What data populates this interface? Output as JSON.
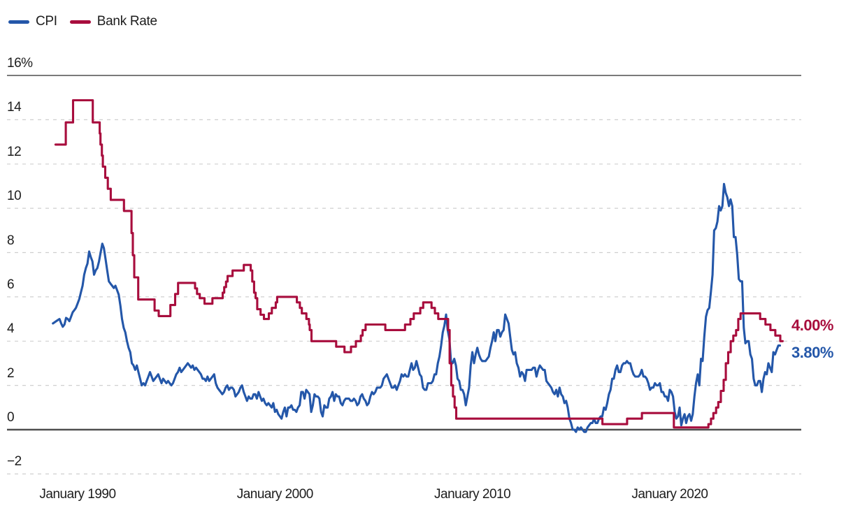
{
  "legend": {
    "items": [
      {
        "label": "CPI",
        "color": "#2457A9"
      },
      {
        "label": "Bank Rate",
        "color": "#A80D3D"
      }
    ]
  },
  "end_labels": [
    {
      "text": "4.00%",
      "series": "Bank Rate",
      "color": "#A80D3D",
      "y_value": 4.0
    },
    {
      "text": "3.80%",
      "series": "CPI",
      "color": "#2457A9",
      "y_value": 3.8
    }
  ],
  "chart_data": {
    "type": "line",
    "title": "",
    "xlabel": "",
    "ylabel": "",
    "x_range": [
      1988.75,
      2025.75
    ],
    "y_range": [
      -2,
      16
    ],
    "grid": "dashed horizontal every 2",
    "legend_position": "top-left",
    "x_ticks": [
      {
        "t": 1990,
        "label": "January 1990"
      },
      {
        "t": 2000,
        "label": "January 2000"
      },
      {
        "t": 2010,
        "label": "January 2010"
      },
      {
        "t": 2020,
        "label": "January 2020"
      }
    ],
    "y_ticks": [
      {
        "v": 16,
        "label": "16%",
        "line": "solid"
      },
      {
        "v": 14,
        "label": "14",
        "line": "dashed"
      },
      {
        "v": 12,
        "label": "12",
        "line": "dashed"
      },
      {
        "v": 10,
        "label": "10",
        "line": "dashed"
      },
      {
        "v": 8,
        "label": "8",
        "line": "dashed"
      },
      {
        "v": 6,
        "label": "6",
        "line": "dashed"
      },
      {
        "v": 4,
        "label": "4",
        "line": "dashed"
      },
      {
        "v": 2,
        "label": "2",
        "line": "dashed"
      },
      {
        "v": 0,
        "label": "0",
        "line": "axis"
      },
      {
        "v": -2,
        "label": "−2",
        "line": "dashed"
      }
    ],
    "series": [
      {
        "name": "CPI",
        "color": "#2457A9",
        "style": "line",
        "start_year": 1988.75,
        "step_years": 0.0833333,
        "values": [
          4.8,
          4.85,
          4.9,
          4.95,
          5.0,
          4.8,
          4.65,
          4.75,
          5.05,
          5.0,
          4.9,
          5.1,
          5.3,
          5.4,
          5.5,
          5.7,
          5.9,
          6.2,
          6.5,
          7.0,
          7.3,
          7.5,
          8.05,
          7.8,
          7.6,
          7.0,
          7.2,
          7.3,
          7.6,
          8.0,
          8.4,
          8.2,
          7.7,
          7.2,
          6.7,
          6.6,
          6.5,
          6.4,
          6.5,
          6.3,
          6.1,
          5.6,
          5.0,
          4.6,
          4.4,
          4.0,
          3.7,
          3.5,
          3.0,
          2.9,
          2.7,
          2.9,
          2.6,
          2.3,
          2.0,
          2.1,
          2.0,
          2.2,
          2.4,
          2.6,
          2.4,
          2.2,
          2.3,
          2.4,
          2.5,
          2.3,
          2.1,
          2.3,
          2.2,
          2.1,
          2.2,
          2.1,
          2.0,
          2.1,
          2.3,
          2.5,
          2.6,
          2.8,
          2.6,
          2.7,
          2.8,
          2.9,
          3.0,
          2.9,
          2.8,
          2.9,
          2.7,
          2.8,
          2.7,
          2.6,
          2.5,
          2.3,
          2.3,
          2.2,
          2.4,
          2.2,
          2.3,
          2.4,
          2.5,
          2.1,
          1.9,
          1.8,
          1.7,
          1.6,
          1.7,
          1.9,
          2.0,
          1.8,
          1.9,
          1.9,
          1.8,
          1.5,
          1.6,
          1.7,
          1.9,
          2.0,
          1.7,
          1.5,
          1.3,
          1.5,
          1.4,
          1.4,
          1.6,
          1.6,
          1.4,
          1.7,
          1.5,
          1.3,
          1.4,
          1.2,
          1.1,
          1.2,
          1.1,
          1.0,
          1.2,
          0.8,
          0.9,
          0.7,
          0.6,
          0.5,
          0.8,
          1.0,
          0.6,
          1.0,
          1.0,
          1.1,
          0.9,
          0.9,
          0.8,
          1.0,
          1.1,
          1.7,
          1.7,
          1.4,
          1.8,
          1.7,
          1.6,
          0.8,
          1.1,
          1.6,
          1.5,
          1.5,
          1.4,
          0.8,
          0.6,
          1.1,
          1.0,
          1.0,
          1.4,
          1.5,
          1.7,
          1.3,
          1.6,
          1.5,
          1.5,
          1.2,
          1.1,
          1.3,
          1.4,
          1.4,
          1.4,
          1.3,
          1.3,
          1.4,
          1.3,
          1.1,
          1.2,
          1.5,
          1.6,
          1.4,
          1.3,
          1.1,
          1.2,
          1.5,
          1.7,
          1.6,
          1.7,
          1.9,
          1.9,
          1.9,
          2.0,
          2.3,
          2.4,
          2.5,
          2.3,
          2.1,
          1.9,
          1.9,
          2.0,
          1.8,
          2.0,
          2.2,
          2.5,
          2.4,
          2.5,
          2.4,
          2.4,
          2.7,
          3.0,
          2.7,
          2.8,
          3.1,
          2.8,
          2.5,
          2.4,
          1.9,
          1.8,
          1.8,
          2.1,
          2.1,
          2.1,
          2.2,
          2.5,
          2.5,
          3.0,
          3.3,
          3.8,
          4.4,
          4.7,
          5.2,
          4.5,
          4.1,
          3.1,
          3.0,
          3.2,
          2.9,
          2.3,
          2.2,
          1.8,
          1.8,
          1.6,
          1.1,
          1.5,
          1.9,
          2.9,
          3.5,
          3.0,
          3.4,
          3.7,
          3.4,
          3.2,
          3.1,
          3.1,
          3.1,
          3.2,
          3.3,
          3.7,
          4.0,
          4.4,
          4.0,
          4.5,
          4.5,
          4.2,
          4.4,
          4.5,
          5.2,
          5.0,
          4.8,
          4.2,
          3.6,
          3.4,
          3.5,
          3.0,
          2.8,
          2.4,
          2.6,
          2.5,
          2.2,
          2.7,
          2.7,
          2.7,
          2.7,
          2.8,
          2.8,
          2.4,
          2.7,
          2.9,
          2.8,
          2.7,
          2.7,
          2.2,
          2.1,
          2.0,
          1.9,
          1.7,
          1.6,
          1.8,
          1.5,
          1.9,
          1.6,
          1.5,
          1.2,
          1.3,
          1.0,
          0.5,
          0.3,
          0.0,
          0.0,
          -0.1,
          0.1,
          0.0,
          0.1,
          0.0,
          -0.1,
          -0.1,
          0.1,
          0.2,
          0.3,
          0.3,
          0.5,
          0.3,
          0.3,
          0.5,
          0.6,
          0.6,
          1.0,
          0.9,
          1.2,
          1.6,
          1.8,
          2.3,
          2.3,
          2.7,
          2.9,
          2.6,
          2.6,
          2.9,
          3.0,
          3.0,
          3.1,
          3.0,
          3.0,
          2.7,
          2.5,
          2.4,
          2.4,
          2.4,
          2.5,
          2.7,
          2.4,
          2.4,
          2.3,
          2.1,
          1.8,
          1.9,
          1.9,
          2.1,
          2.0,
          2.0,
          2.1,
          1.7,
          1.7,
          1.5,
          1.5,
          1.3,
          1.8,
          1.7,
          1.5,
          0.8,
          0.5,
          0.6,
          1.0,
          0.2,
          0.5,
          0.7,
          0.3,
          0.6,
          0.7,
          0.4,
          0.7,
          1.5,
          2.1,
          2.5,
          2.0,
          3.2,
          3.1,
          4.2,
          5.1,
          5.4,
          5.5,
          6.2,
          7.0,
          9.0,
          9.1,
          9.4,
          10.1,
          9.9,
          10.1,
          11.1,
          10.7,
          10.5,
          10.1,
          10.4,
          10.1,
          8.7,
          8.7,
          7.9,
          6.8,
          6.7,
          6.7,
          4.6,
          3.9,
          4.0,
          4.0,
          3.4,
          3.2,
          2.3,
          2.0,
          2.0,
          2.2,
          2.2,
          1.7,
          2.3,
          2.6,
          2.5,
          3.0,
          2.8,
          2.6,
          3.5,
          3.4,
          3.6,
          3.8,
          3.8
        ]
      },
      {
        "name": "Bank Rate",
        "color": "#A80D3D",
        "style": "step",
        "points": [
          [
            1988.88,
            12.88
          ],
          [
            1989.4,
            13.88
          ],
          [
            1989.77,
            14.88
          ],
          [
            1990.77,
            13.88
          ],
          [
            1991.12,
            13.38
          ],
          [
            1991.16,
            12.88
          ],
          [
            1991.23,
            12.38
          ],
          [
            1991.28,
            11.88
          ],
          [
            1991.4,
            11.38
          ],
          [
            1991.53,
            10.88
          ],
          [
            1991.68,
            10.38
          ],
          [
            1992.35,
            9.88
          ],
          [
            1992.73,
            8.88
          ],
          [
            1992.8,
            7.88
          ],
          [
            1992.87,
            6.88
          ],
          [
            1993.07,
            5.88
          ],
          [
            1993.9,
            5.38
          ],
          [
            1994.11,
            5.13
          ],
          [
            1994.7,
            5.63
          ],
          [
            1994.94,
            6.13
          ],
          [
            1995.09,
            6.63
          ],
          [
            1995.95,
            6.38
          ],
          [
            1996.05,
            6.13
          ],
          [
            1996.19,
            5.94
          ],
          [
            1996.43,
            5.69
          ],
          [
            1996.83,
            5.94
          ],
          [
            1997.35,
            6.19
          ],
          [
            1997.43,
            6.44
          ],
          [
            1997.52,
            6.69
          ],
          [
            1997.6,
            6.94
          ],
          [
            1997.85,
            7.19
          ],
          [
            1998.42,
            7.44
          ],
          [
            1998.77,
            7.19
          ],
          [
            1998.85,
            6.69
          ],
          [
            1998.94,
            6.19
          ],
          [
            1999.02,
            5.94
          ],
          [
            1999.1,
            5.44
          ],
          [
            1999.27,
            5.19
          ],
          [
            1999.44,
            5.0
          ],
          [
            1999.69,
            5.25
          ],
          [
            1999.84,
            5.5
          ],
          [
            2000.04,
            5.75
          ],
          [
            2000.11,
            6.0
          ],
          [
            2001.11,
            5.75
          ],
          [
            2001.26,
            5.5
          ],
          [
            2001.36,
            5.25
          ],
          [
            2001.59,
            5.0
          ],
          [
            2001.72,
            4.75
          ],
          [
            2001.76,
            4.5
          ],
          [
            2001.85,
            4.0
          ],
          [
            2003.1,
            3.75
          ],
          [
            2003.52,
            3.5
          ],
          [
            2003.85,
            3.75
          ],
          [
            2004.1,
            4.0
          ],
          [
            2004.35,
            4.25
          ],
          [
            2004.44,
            4.5
          ],
          [
            2004.59,
            4.75
          ],
          [
            2005.59,
            4.5
          ],
          [
            2006.59,
            4.75
          ],
          [
            2006.86,
            5.0
          ],
          [
            2007.03,
            5.25
          ],
          [
            2007.36,
            5.5
          ],
          [
            2007.51,
            5.75
          ],
          [
            2007.93,
            5.5
          ],
          [
            2008.1,
            5.25
          ],
          [
            2008.27,
            5.0
          ],
          [
            2008.77,
            4.5
          ],
          [
            2008.85,
            3.0
          ],
          [
            2008.93,
            2.0
          ],
          [
            2009.02,
            1.5
          ],
          [
            2009.1,
            1.0
          ],
          [
            2009.18,
            0.5
          ],
          [
            2016.59,
            0.25
          ],
          [
            2017.84,
            0.5
          ],
          [
            2018.59,
            0.75
          ],
          [
            2020.21,
            0.1
          ],
          [
            2021.96,
            0.25
          ],
          [
            2022.09,
            0.5
          ],
          [
            2022.21,
            0.75
          ],
          [
            2022.35,
            1.0
          ],
          [
            2022.46,
            1.25
          ],
          [
            2022.59,
            1.75
          ],
          [
            2022.73,
            2.25
          ],
          [
            2022.84,
            3.0
          ],
          [
            2022.96,
            3.5
          ],
          [
            2023.09,
            4.0
          ],
          [
            2023.22,
            4.25
          ],
          [
            2023.36,
            4.5
          ],
          [
            2023.47,
            5.0
          ],
          [
            2023.59,
            5.25
          ],
          [
            2024.58,
            5.0
          ],
          [
            2024.85,
            4.75
          ],
          [
            2025.1,
            4.5
          ],
          [
            2025.35,
            4.25
          ],
          [
            2025.6,
            4.0
          ],
          [
            2025.72,
            4.0
          ]
        ]
      }
    ]
  },
  "colors": {
    "grid_dashed": "#cfcfcf",
    "grid_solid": "#4f4f4f",
    "text": "#1d1d1d"
  }
}
